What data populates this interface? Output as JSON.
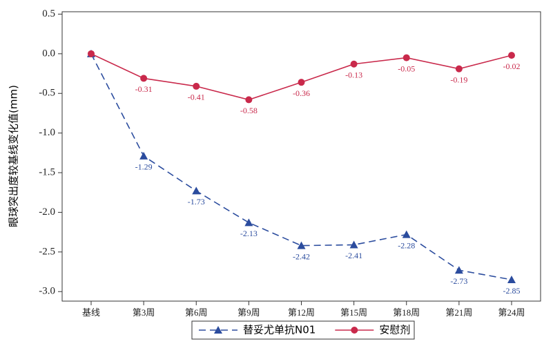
{
  "chart_data": {
    "type": "line",
    "ylabel": "眼球突出度较基线变化值(mm)",
    "categories": [
      "基线",
      "第3周",
      "第6周",
      "第9周",
      "第12周",
      "第15周",
      "第18周",
      "第21周",
      "第24周"
    ],
    "series": [
      {
        "name": "替妥尤单抗N01",
        "color": "#2b4c9e",
        "line_style": "dashed",
        "marker": "triangle",
        "values": [
          0,
          -1.29,
          -1.73,
          -2.13,
          -2.42,
          -2.41,
          -2.28,
          -2.73,
          -2.85
        ],
        "value_labels": [
          null,
          "-1.29",
          "-1.73",
          "-2.13",
          "-2.42",
          "-2.41",
          "-2.28",
          "-2.73",
          "-2.85"
        ]
      },
      {
        "name": "安慰剂",
        "color": "#c9294b",
        "line_style": "solid",
        "marker": "circle",
        "values": [
          0,
          -0.31,
          -0.41,
          -0.58,
          -0.36,
          -0.13,
          -0.05,
          -0.19,
          -0.02
        ],
        "value_labels": [
          null,
          "-0.31",
          "-0.41",
          "-0.58",
          "-0.36",
          "-0.13",
          "-0.05",
          "-0.19",
          "-0.02"
        ]
      }
    ],
    "ylim": [
      -3.12,
      0.53
    ],
    "yticks": [
      0.5,
      {
        "value": 0,
        "label": "0.0"
      },
      -0.5,
      {
        "value": -1,
        "label": "-1.0"
      },
      -1.5,
      {
        "value": -2,
        "label": "-2.0"
      },
      -2.5,
      {
        "value": -3,
        "label": "-3.0"
      }
    ],
    "grid": false,
    "legend": "bottom"
  }
}
